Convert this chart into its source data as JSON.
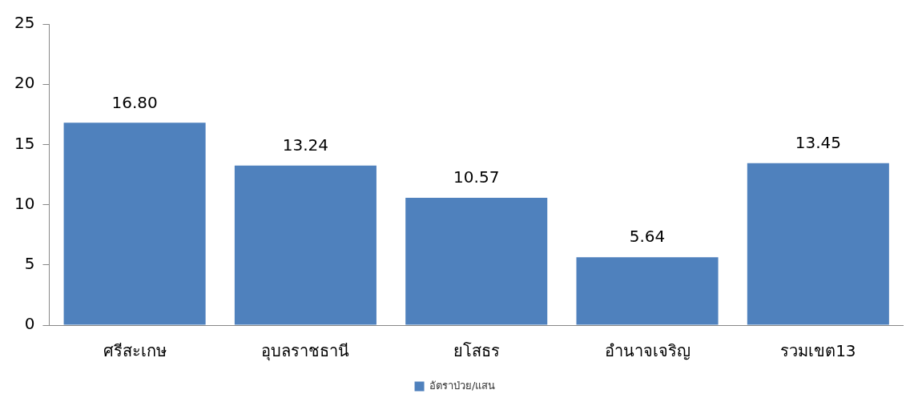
{
  "chart_data": {
    "type": "bar",
    "categories": [
      "ศรีสะเกษ",
      "อุบลราชธานี",
      "ยโสธร",
      "อำนาจเจริญ",
      "รวมเขต13"
    ],
    "series": [
      {
        "name": "อัตราป่วย/แสน",
        "color": "#4f81bd",
        "values": [
          16.8,
          13.24,
          10.57,
          5.64,
          13.45
        ],
        "value_labels": [
          "16.80",
          "13.24",
          "10.57",
          "5.64",
          "13.45"
        ]
      }
    ],
    "ylim": [
      0,
      25
    ],
    "yticks": [
      0,
      5,
      10,
      15,
      20,
      25
    ],
    "grid": false,
    "legend": "bottom"
  }
}
